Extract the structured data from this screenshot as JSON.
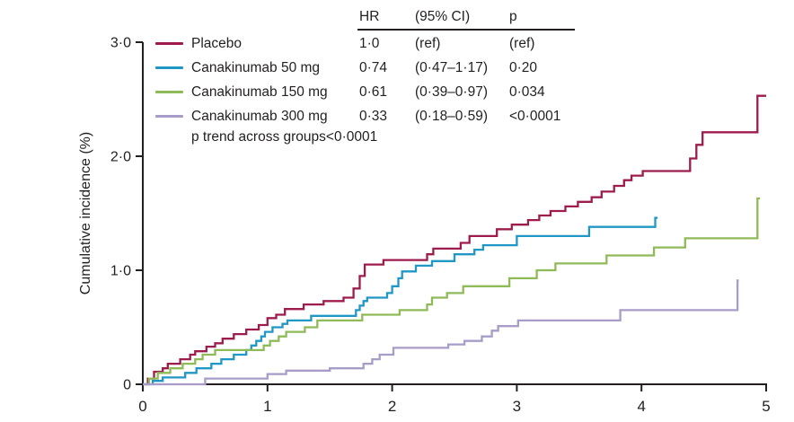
{
  "chart_data": {
    "type": "line",
    "subtype": "kaplan-meier-step-cumulative-incidence",
    "title": "",
    "xlabel": "",
    "ylabel": "Cumulative incidence (%)",
    "xlim": [
      0,
      5
    ],
    "ylim": [
      0,
      3
    ],
    "grid": false,
    "legend_position": "top-left",
    "x_ticks": [
      {
        "value": 0,
        "label": "0"
      },
      {
        "value": 1,
        "label": "1"
      },
      {
        "value": 2,
        "label": "2"
      },
      {
        "value": 3,
        "label": "3"
      },
      {
        "value": 4,
        "label": "4"
      },
      {
        "value": 5,
        "label": "5"
      }
    ],
    "y_ticks": [
      {
        "value": 0,
        "label": "0"
      },
      {
        "value": 1,
        "label": "1·0"
      },
      {
        "value": 2,
        "label": "2·0"
      },
      {
        "value": 3,
        "label": "3·0"
      }
    ],
    "series": [
      {
        "name": "Placebo",
        "color": "#9e1c4d",
        "hr": "1·0",
        "ci": "(ref)",
        "p": "(ref)",
        "end": 5.0,
        "steps": [
          [
            0.04,
            0.05
          ],
          [
            0.09,
            0.11
          ],
          [
            0.16,
            0.14
          ],
          [
            0.2,
            0.18
          ],
          [
            0.3,
            0.22
          ],
          [
            0.38,
            0.26
          ],
          [
            0.42,
            0.29
          ],
          [
            0.51,
            0.33
          ],
          [
            0.58,
            0.36
          ],
          [
            0.64,
            0.4
          ],
          [
            0.73,
            0.44
          ],
          [
            0.83,
            0.48
          ],
          [
            0.93,
            0.52
          ],
          [
            1.0,
            0.58
          ],
          [
            1.07,
            0.61
          ],
          [
            1.14,
            0.66
          ],
          [
            1.29,
            0.7
          ],
          [
            1.45,
            0.73
          ],
          [
            1.61,
            0.76
          ],
          [
            1.69,
            0.84
          ],
          [
            1.74,
            0.95
          ],
          [
            1.78,
            1.05
          ],
          [
            1.93,
            1.09
          ],
          [
            2.28,
            1.14
          ],
          [
            2.33,
            1.19
          ],
          [
            2.55,
            1.24
          ],
          [
            2.62,
            1.3
          ],
          [
            2.84,
            1.36
          ],
          [
            2.96,
            1.4
          ],
          [
            3.09,
            1.44
          ],
          [
            3.18,
            1.48
          ],
          [
            3.27,
            1.52
          ],
          [
            3.39,
            1.56
          ],
          [
            3.49,
            1.6
          ],
          [
            3.6,
            1.64
          ],
          [
            3.68,
            1.69
          ],
          [
            3.78,
            1.74
          ],
          [
            3.86,
            1.79
          ],
          [
            3.92,
            1.83
          ],
          [
            4.01,
            1.87
          ],
          [
            4.39,
            1.98
          ],
          [
            4.44,
            2.1
          ],
          [
            4.49,
            2.21
          ],
          [
            4.93,
            2.53
          ]
        ]
      },
      {
        "name": "Canakinumab 50 mg",
        "color": "#2097c5",
        "hr": "0·74",
        "ci": "(0·47–1·17)",
        "p": "0·20",
        "end": 4.13,
        "steps": [
          [
            0.08,
            0.03
          ],
          [
            0.16,
            0.06
          ],
          [
            0.34,
            0.1
          ],
          [
            0.43,
            0.14
          ],
          [
            0.55,
            0.18
          ],
          [
            0.63,
            0.22
          ],
          [
            0.73,
            0.26
          ],
          [
            0.83,
            0.3
          ],
          [
            0.87,
            0.34
          ],
          [
            0.91,
            0.38
          ],
          [
            0.95,
            0.42
          ],
          [
            0.98,
            0.46
          ],
          [
            1.04,
            0.5
          ],
          [
            1.12,
            0.53
          ],
          [
            1.16,
            0.56
          ],
          [
            1.35,
            0.6
          ],
          [
            1.71,
            0.65
          ],
          [
            1.74,
            0.69
          ],
          [
            1.77,
            0.73
          ],
          [
            1.8,
            0.76
          ],
          [
            1.96,
            0.8
          ],
          [
            2.0,
            0.86
          ],
          [
            2.05,
            0.93
          ],
          [
            2.08,
            0.99
          ],
          [
            2.19,
            1.04
          ],
          [
            2.32,
            1.08
          ],
          [
            2.5,
            1.14
          ],
          [
            2.66,
            1.18
          ],
          [
            2.73,
            1.22
          ],
          [
            3.0,
            1.3
          ],
          [
            3.58,
            1.38
          ],
          [
            4.11,
            1.46
          ]
        ]
      },
      {
        "name": "Canakinumab 150 mg",
        "color": "#8fba58",
        "hr": "0·61",
        "ci": "(0·39–0·97)",
        "p": "0·034",
        "end": 4.95,
        "steps": [
          [
            0.05,
            0.05
          ],
          [
            0.12,
            0.1
          ],
          [
            0.22,
            0.14
          ],
          [
            0.32,
            0.18
          ],
          [
            0.42,
            0.22
          ],
          [
            0.48,
            0.26
          ],
          [
            0.58,
            0.3
          ],
          [
            0.97,
            0.34
          ],
          [
            1.02,
            0.38
          ],
          [
            1.09,
            0.42
          ],
          [
            1.15,
            0.46
          ],
          [
            1.3,
            0.5
          ],
          [
            1.4,
            0.56
          ],
          [
            1.76,
            0.61
          ],
          [
            2.06,
            0.65
          ],
          [
            2.28,
            0.7
          ],
          [
            2.32,
            0.76
          ],
          [
            2.44,
            0.8
          ],
          [
            2.57,
            0.86
          ],
          [
            2.94,
            0.93
          ],
          [
            3.16,
            1.0
          ],
          [
            3.31,
            1.06
          ],
          [
            3.72,
            1.13
          ],
          [
            4.1,
            1.2
          ],
          [
            4.35,
            1.28
          ],
          [
            4.93,
            1.63
          ]
        ]
      },
      {
        "name": "Canakinumab 300 mg",
        "color": "#a89cc8",
        "hr": "0·33",
        "ci": "(0·18–0·59)",
        "p": "<0·0001",
        "end": 4.78,
        "steps": [
          [
            0.5,
            0.05
          ],
          [
            1.0,
            0.09
          ],
          [
            1.15,
            0.12
          ],
          [
            1.5,
            0.14
          ],
          [
            1.77,
            0.18
          ],
          [
            1.84,
            0.22
          ],
          [
            1.9,
            0.26
          ],
          [
            2.01,
            0.32
          ],
          [
            2.45,
            0.35
          ],
          [
            2.58,
            0.38
          ],
          [
            2.72,
            0.42
          ],
          [
            2.8,
            0.47
          ],
          [
            2.85,
            0.51
          ],
          [
            3.01,
            0.56
          ],
          [
            3.83,
            0.65
          ],
          [
            4.77,
            0.91
          ]
        ]
      }
    ],
    "table_headers": {
      "hr": "HR",
      "ci": "(95% CI)",
      "p": "p"
    },
    "footnote": "p trend across groups<0·0001"
  }
}
